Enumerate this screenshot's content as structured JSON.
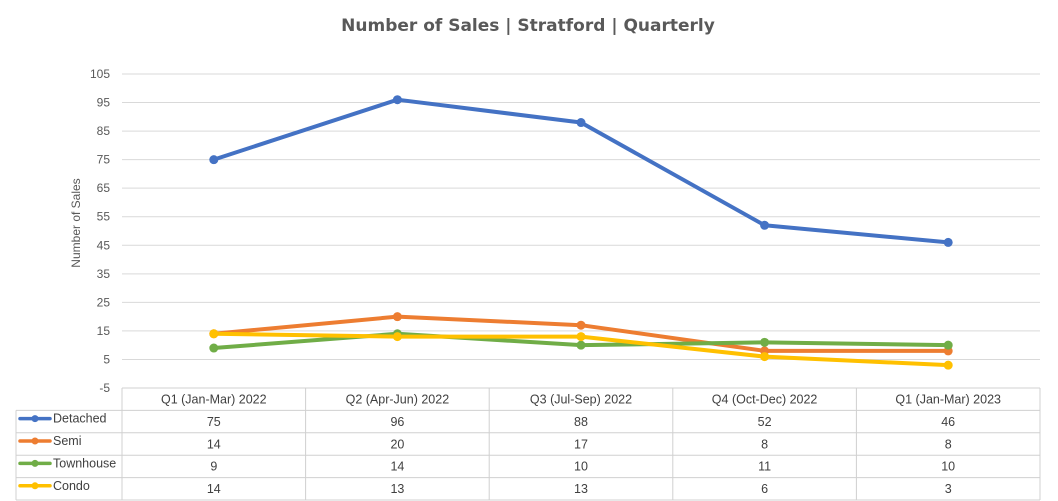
{
  "chart_data": {
    "type": "line",
    "title": "Number of Sales | Stratford | Quarterly",
    "xlabel": "",
    "ylabel": "Number of Sales",
    "ylim": [
      -5,
      105
    ],
    "yticks": [
      105,
      95,
      85,
      75,
      65,
      55,
      45,
      35,
      25,
      15,
      5,
      -5
    ],
    "grid": true,
    "legend": "data-table-below",
    "categories": [
      "Q1 (Jan-Mar) 2022",
      "Q2 (Apr-Jun) 2022",
      "Q3 (Jul-Sep) 2022",
      "Q4 (Oct-Dec) 2022",
      "Q1 (Jan-Mar) 2023"
    ],
    "series": [
      {
        "name": "Detached",
        "color": "#4472c4",
        "values": [
          75,
          96,
          88,
          52,
          46
        ]
      },
      {
        "name": "Semi",
        "color": "#ed7d31",
        "values": [
          14,
          20,
          17,
          8,
          8
        ]
      },
      {
        "name": "Townhouse",
        "color": "#70ad47",
        "values": [
          9,
          14,
          10,
          11,
          10
        ]
      },
      {
        "name": "Condo",
        "color": "#ffc000",
        "values": [
          14,
          13,
          13,
          6,
          3
        ]
      }
    ]
  }
}
